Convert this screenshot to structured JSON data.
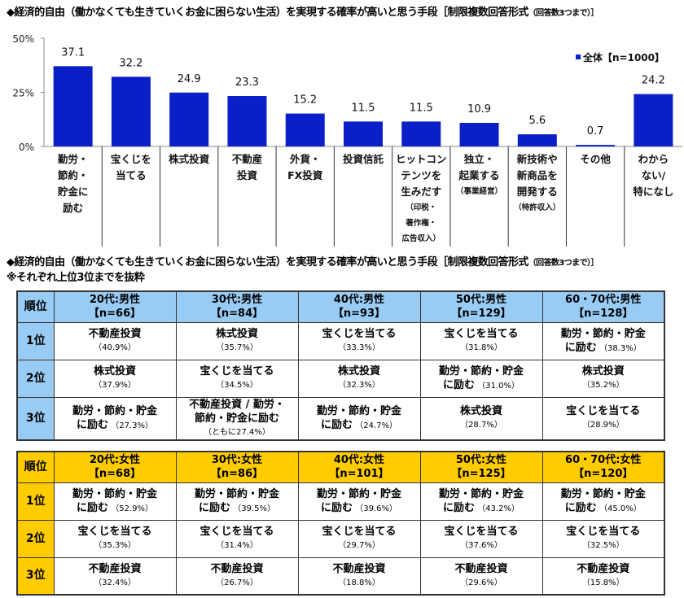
{
  "chart_title": "◆経済的自由（働かなくても生きていくお金に困らない生活）を実現する確率が高いと思う手段［制限複数回答形式",
  "chart_title_small": "（回答数3つまで）］",
  "chart_data": {
    "type": "bar",
    "categories": [
      {
        "lines": [
          "勤労・",
          "節約・",
          "貯金に",
          "励む"
        ],
        "sub": []
      },
      {
        "lines": [
          "宝くじを",
          "当てる"
        ],
        "sub": []
      },
      {
        "lines": [
          "株式投資"
        ],
        "sub": []
      },
      {
        "lines": [
          "不動産",
          "投資"
        ],
        "sub": []
      },
      {
        "lines": [
          "外貨・",
          "FX投資"
        ],
        "sub": []
      },
      {
        "lines": [
          "投資信託"
        ],
        "sub": []
      },
      {
        "lines": [
          "ヒットコン",
          "テンツを",
          "生みだす"
        ],
        "sub": [
          "（印税・",
          "著作権・",
          "広告収入）"
        ]
      },
      {
        "lines": [
          "独立・",
          "起業する"
        ],
        "sub": [
          "（事業経営）"
        ]
      },
      {
        "lines": [
          "新技術や",
          "新商品を",
          "開発する"
        ],
        "sub": [
          "（特許収入）"
        ]
      },
      {
        "lines": [
          "その他"
        ],
        "sub": []
      },
      {
        "lines": [
          "わから",
          "ない/",
          "特になし"
        ],
        "sub": []
      }
    ],
    "series": [
      {
        "name": "全体【n=1000】",
        "color": "#0a1fc8",
        "values": [
          37.1,
          32.2,
          24.9,
          23.3,
          15.2,
          11.5,
          11.5,
          10.9,
          5.6,
          0.7,
          24.2
        ]
      }
    ],
    "yticks": [
      "0%",
      "25%",
      "50%"
    ],
    "ylim": [
      0,
      50
    ],
    "legend": "top-right",
    "grid": false
  },
  "table_title": "◆経済的自由（働かなくても生きていくお金に困らない生活）を実現する確率が高いと思う手段［制限複数回答形式",
  "table_title_small": "（回答数3つまで）］",
  "table_note": "※それぞれ上位3位までを抜粋",
  "rank_header": "順位",
  "ranks": [
    "1位",
    "2位",
    "3位"
  ],
  "male_table": {
    "color": "#99ccf5",
    "columns": [
      {
        "label": "20代:男性",
        "n": "【n=66】",
        "cells": [
          {
            "lines": [
              "不動産投資"
            ],
            "pct": "（40.9%）"
          },
          {
            "lines": [
              "株式投資"
            ],
            "pct": "（37.9%）"
          },
          {
            "lines": [
              "勤労・節約・貯金",
              "に励む"
            ],
            "pct": "（27.3%）"
          }
        ]
      },
      {
        "label": "30代:男性",
        "n": "【n=84】",
        "cells": [
          {
            "lines": [
              "株式投資"
            ],
            "pct": "（35.7%）"
          },
          {
            "lines": [
              "宝くじを当てる"
            ],
            "pct": "（34.5%）"
          },
          {
            "lines": [
              "不動産投資 / 勤労・",
              "節約・貯金に励む"
            ],
            "pct": "（ともに27.4%）"
          }
        ]
      },
      {
        "label": "40代:男性",
        "n": "【n=93】",
        "cells": [
          {
            "lines": [
              "宝くじを当てる"
            ],
            "pct": "（33.3%）"
          },
          {
            "lines": [
              "株式投資"
            ],
            "pct": "（32.3%）"
          },
          {
            "lines": [
              "勤労・節約・貯金",
              "に励む"
            ],
            "pct": "（24.7%）"
          }
        ]
      },
      {
        "label": "50代:男性",
        "n": "【n=129】",
        "cells": [
          {
            "lines": [
              "宝くじを当てる"
            ],
            "pct": "（31.8%）"
          },
          {
            "lines": [
              "勤労・節約・貯金",
              "に励む"
            ],
            "pct": "（31.0%）"
          },
          {
            "lines": [
              "株式投資"
            ],
            "pct": "（28.7%）"
          }
        ]
      },
      {
        "label": "60・70代:男性",
        "n": "【n=128】",
        "cells": [
          {
            "lines": [
              "勤労・節約・貯金",
              "に励む"
            ],
            "pct": "（38.3%）"
          },
          {
            "lines": [
              "株式投資"
            ],
            "pct": "（35.2%）"
          },
          {
            "lines": [
              "宝くじを当てる"
            ],
            "pct": "（28.9%）"
          }
        ]
      }
    ]
  },
  "female_table": {
    "color": "#ffcc00",
    "columns": [
      {
        "label": "20代:女性",
        "n": "【n=68】",
        "cells": [
          {
            "lines": [
              "勤労・節約・貯金",
              "に励む"
            ],
            "pct": "（52.9%）"
          },
          {
            "lines": [
              "宝くじを当てる"
            ],
            "pct": "（35.3%）"
          },
          {
            "lines": [
              "不動産投資"
            ],
            "pct": "（32.4%）"
          }
        ]
      },
      {
        "label": "30代:女性",
        "n": "【n=86】",
        "cells": [
          {
            "lines": [
              "勤労・節約・貯金",
              "に励む"
            ],
            "pct": "（39.5%）"
          },
          {
            "lines": [
              "宝くじを当てる"
            ],
            "pct": "（31.4%）"
          },
          {
            "lines": [
              "不動産投資"
            ],
            "pct": "（26.7%）"
          }
        ]
      },
      {
        "label": "40代:女性",
        "n": "【n=101】",
        "cells": [
          {
            "lines": [
              "勤労・節約・貯金",
              "に励む"
            ],
            "pct": "（39.6%）"
          },
          {
            "lines": [
              "宝くじを当てる"
            ],
            "pct": "（29.7%）"
          },
          {
            "lines": [
              "不動産投資"
            ],
            "pct": "（18.8%）"
          }
        ]
      },
      {
        "label": "50代:女性",
        "n": "【n=125】",
        "cells": [
          {
            "lines": [
              "勤労・節約・貯金",
              "に励む"
            ],
            "pct": "（43.2%）"
          },
          {
            "lines": [
              "宝くじを当てる"
            ],
            "pct": "（37.6%）"
          },
          {
            "lines": [
              "不動産投資"
            ],
            "pct": "（29.6%）"
          }
        ]
      },
      {
        "label": "60・70代:女性",
        "n": "【n=120】",
        "cells": [
          {
            "lines": [
              "勤労・節約・貯金",
              "に励む"
            ],
            "pct": "（45.0%）"
          },
          {
            "lines": [
              "宝くじを当てる"
            ],
            "pct": "（32.5%）"
          },
          {
            "lines": [
              "不動産投資"
            ],
            "pct": "（15.8%）"
          }
        ]
      }
    ]
  }
}
